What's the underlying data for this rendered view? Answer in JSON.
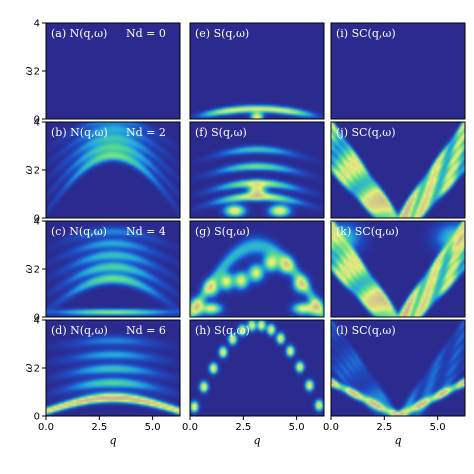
{
  "chart_data": {
    "type": "heatmap",
    "layout": {
      "rows": 4,
      "cols": 3
    },
    "x_axis": {
      "label": "q",
      "range": [
        0,
        6.283
      ],
      "ticks": [
        0,
        2.5,
        5
      ],
      "tick_labels": [
        "0.0",
        "2.5",
        "5.0"
      ]
    },
    "y_axis": {
      "label": "ω",
      "range": [
        0,
        4
      ],
      "ticks": [
        0,
        2,
        4
      ],
      "tick_labels": [
        "0",
        "2",
        "4"
      ]
    },
    "colormap": [
      "#2b2a8e",
      "#1e4fc8",
      "#21a6e0",
      "#58dc8c",
      "#e8f07a",
      "#c8b890",
      "#ffffff"
    ],
    "panels": [
      {
        "label": "(a) N(q,ω)",
        "note": "N_d = 0",
        "note_display": "Nd = 0",
        "kind": "empty"
      },
      {
        "label": "(e) S(q,ω)",
        "note": "",
        "kind": "S",
        "Nd": 0
      },
      {
        "label": "(i) SC(q,ω)",
        "note": "",
        "kind": "empty"
      },
      {
        "label": "(b) N(q,ω)",
        "note": "N_d = 2",
        "note_display": "Nd = 2",
        "kind": "N",
        "Nd": 2
      },
      {
        "label": "(f) S(q,ω)",
        "note": "",
        "kind": "S",
        "Nd": 2
      },
      {
        "label": "(j) SC(q,ω)",
        "note": "",
        "kind": "SC",
        "Nd": 2
      },
      {
        "label": "(c) N(q,ω)",
        "note": "N_d = 4",
        "note_display": "Nd = 4",
        "kind": "N",
        "Nd": 4
      },
      {
        "label": "(g) S(q,ω)",
        "note": "",
        "kind": "S",
        "Nd": 4
      },
      {
        "label": "(k) SC(q,ω)",
        "note": "",
        "kind": "SC",
        "Nd": 4
      },
      {
        "label": "(d) N(q,ω)",
        "note": "N_d = 6",
        "note_display": "Nd = 6",
        "kind": "N",
        "Nd": 6
      },
      {
        "label": "(h) S(q,ω)",
        "note": "",
        "kind": "S",
        "Nd": 6
      },
      {
        "label": "(l) SC(q,ω)",
        "note": "",
        "kind": "SC",
        "Nd": 6
      }
    ]
  }
}
